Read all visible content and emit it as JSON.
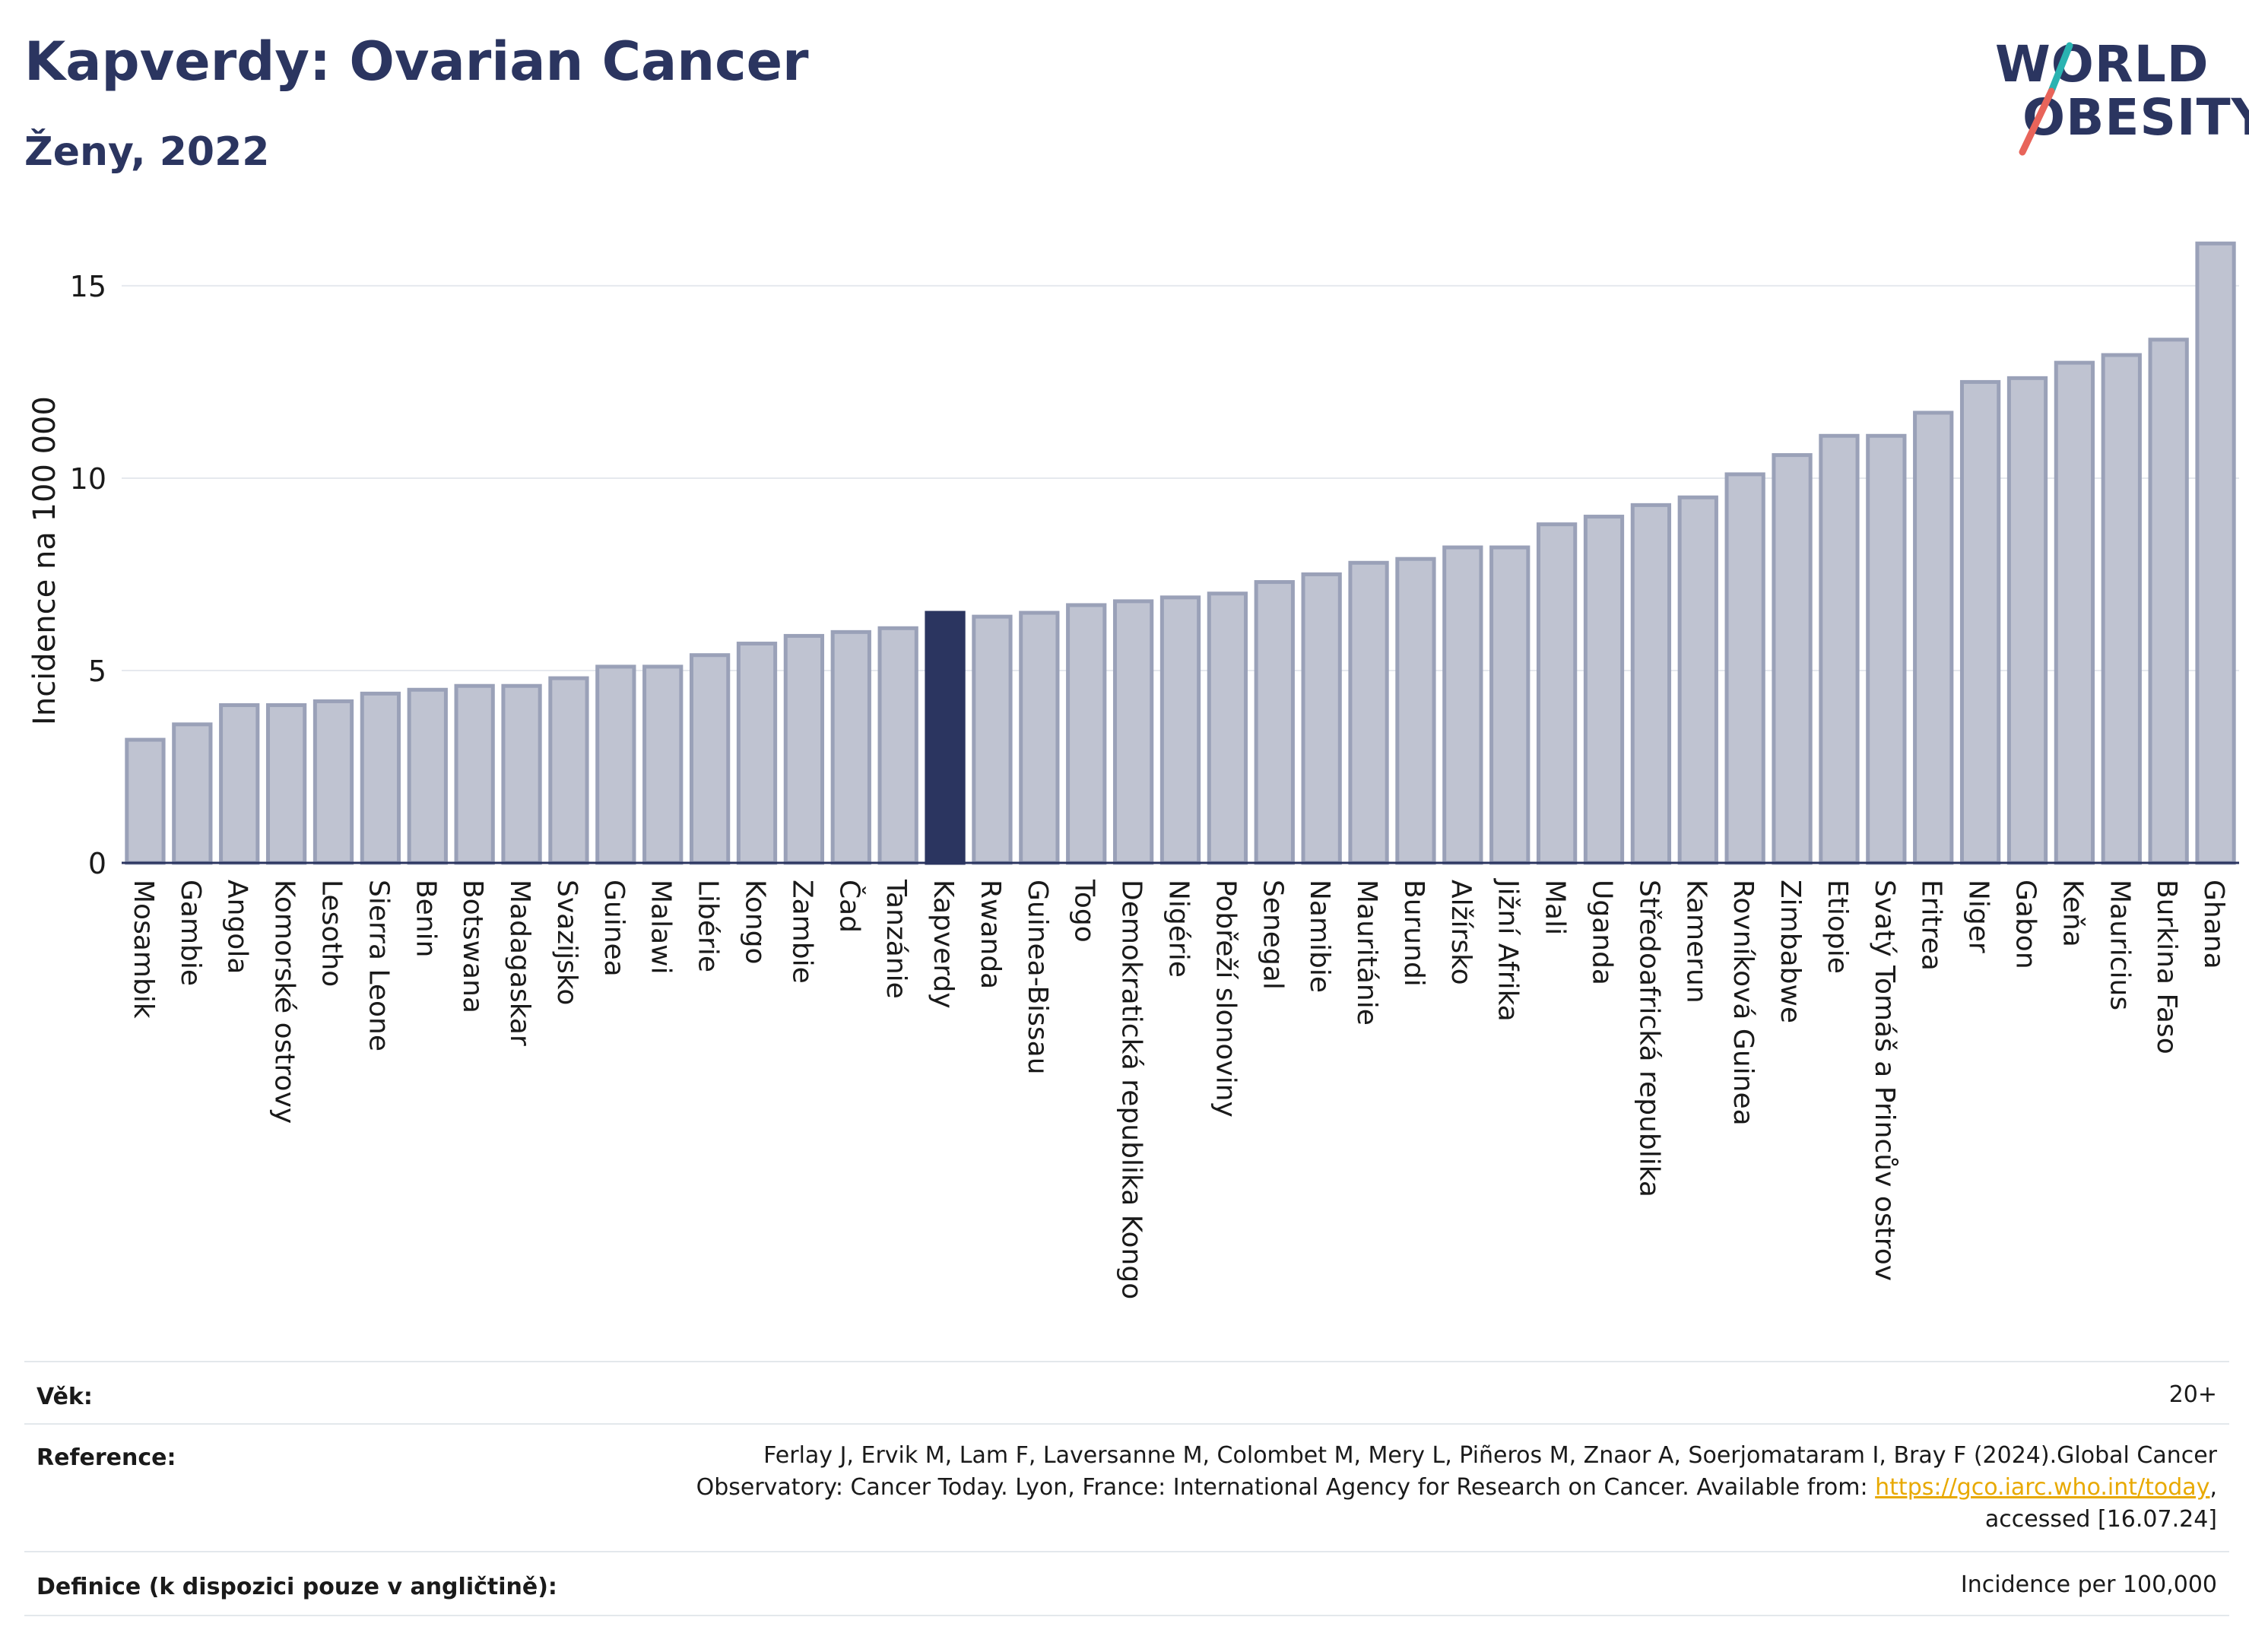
{
  "header": {
    "title": "Kapverdy: Ovarian Cancer",
    "subtitle": "Ženy, 2022"
  },
  "logo": {
    "line1": "WORLD",
    "line2": "OBESITY"
  },
  "colors": {
    "bar": "#bfc3d1",
    "bar_border": "#9aa1b8",
    "highlight": "#2b3560",
    "text": "#2b3560"
  },
  "chart_data": {
    "type": "bar",
    "ylabel": "Incidence na 100 000",
    "xlabel": "",
    "ylim": [
      0,
      16.5
    ],
    "yticks": [
      0,
      5,
      10,
      15
    ],
    "grid": true,
    "highlight": "Kapverdy",
    "categories": [
      "Mosambik",
      "Gambie",
      "Angola",
      "Komorské ostrovy",
      "Lesotho",
      "Sierra Leone",
      "Benin",
      "Botswana",
      "Madagaskar",
      "Svazijsko",
      "Guinea",
      "Malawi",
      "Libérie",
      "Kongo",
      "Zambie",
      "Čad",
      "Tanzánie",
      "Kapverdy",
      "Rwanda",
      "Guinea-Bissau",
      "Togo",
      "Demokratická republika Kongo",
      "Nigérie",
      "Pobřeží slonoviny",
      "Senegal",
      "Namibie",
      "Mauritánie",
      "Burundi",
      "Alžírsko",
      "Jižní Afrika",
      "Mali",
      "Uganda",
      "Středoafrická republika",
      "Kamerun",
      "Rovníková Guinea",
      "Zimbabwe",
      "Etiopie",
      "Svatý Tomáš a Princův ostrov",
      "Eritrea",
      "Niger",
      "Gabon",
      "Keňa",
      "Mauricius",
      "Burkina Faso",
      "Ghana"
    ],
    "values": [
      3.2,
      3.6,
      4.1,
      4.1,
      4.2,
      4.4,
      4.5,
      4.6,
      4.6,
      4.8,
      5.1,
      5.1,
      5.4,
      5.7,
      5.9,
      6.0,
      6.1,
      6.5,
      6.4,
      6.5,
      6.7,
      6.8,
      6.9,
      7.0,
      7.3,
      7.5,
      7.8,
      7.9,
      8.2,
      8.2,
      8.8,
      9.0,
      9.3,
      9.5,
      10.1,
      10.6,
      11.1,
      11.1,
      11.7,
      12.5,
      12.6,
      13.0,
      13.2,
      13.6,
      16.1
    ]
  },
  "footer": {
    "age_label": "Věk:",
    "age_value": "20+",
    "reference_label": "Reference:",
    "reference_text1": "Ferlay J, Ervik M, Lam F, Laversanne M, Colombet M, Mery L, Piñeros M, Znaor A, Soerjomataram I, Bray F (2024).Global Cancer",
    "reference_text2": "Observatory: Cancer Today. Lyon, France: International Agency for Research on Cancer. Available from: ",
    "reference_link": "https://gco.iarc.who.int/today",
    "reference_text3": ",",
    "reference_text4": "accessed [16.07.24]",
    "definition_label": "Definice (k dispozici pouze v angličtině):",
    "definition_value": "Incidence per 100,000"
  }
}
